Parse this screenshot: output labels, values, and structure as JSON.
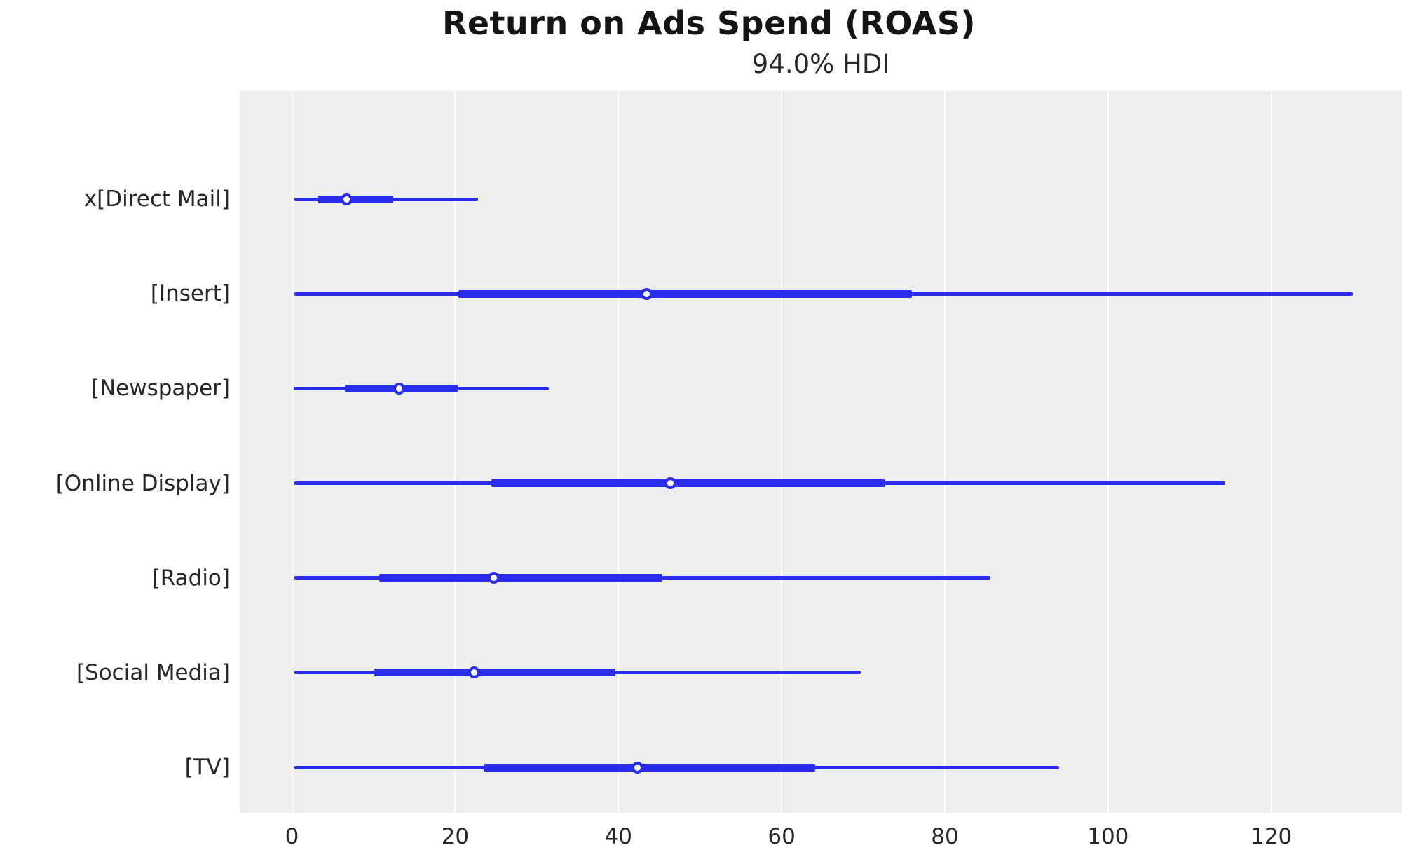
{
  "figure": {
    "title": "Return on Ads Spend (ROAS)",
    "subtitle": "94.0% HDI"
  },
  "chart_data": {
    "type": "forest",
    "title": "Return on Ads Spend (ROAS)",
    "subtitle": "94.0% HDI",
    "hdi_probability": "94.0%",
    "orientation": "horizontal",
    "grid": "vertical-white-on-gray",
    "legend": "none",
    "xlim": [
      -6.4,
      136.0
    ],
    "x_ticks": [
      0,
      20,
      40,
      60,
      80,
      100,
      120
    ],
    "x_tick_labels": [
      "0",
      "20",
      "40",
      "60",
      "80",
      "100",
      "120"
    ],
    "series": [
      {
        "label": "x[Direct Mail]",
        "hdi_low": 0.3,
        "hdi_high": 22.8,
        "iqr_low": 3.2,
        "iqr_high": 12.4,
        "point": 6.7
      },
      {
        "label": "[Insert]",
        "hdi_low": 0.3,
        "hdi_high": 130.0,
        "iqr_low": 20.4,
        "iqr_high": 76.0,
        "point": 43.5
      },
      {
        "label": "[Newspaper]",
        "hdi_low": 0.2,
        "hdi_high": 31.5,
        "iqr_low": 6.5,
        "iqr_high": 20.3,
        "point": 13.1
      },
      {
        "label": "[Online Display]",
        "hdi_low": 0.3,
        "hdi_high": 114.4,
        "iqr_low": 24.4,
        "iqr_high": 72.7,
        "point": 46.4
      },
      {
        "label": "[Radio]",
        "hdi_low": 0.3,
        "hdi_high": 85.6,
        "iqr_low": 10.7,
        "iqr_high": 45.4,
        "point": 24.7
      },
      {
        "label": "[Social Media]",
        "hdi_low": 0.3,
        "hdi_high": 69.7,
        "iqr_low": 10.1,
        "iqr_high": 39.6,
        "point": 22.3
      },
      {
        "label": "[TV]",
        "hdi_low": 0.3,
        "hdi_high": 94.0,
        "iqr_low": 23.5,
        "iqr_high": 64.1,
        "point": 42.3
      }
    ],
    "colors": {
      "line": "#2a2eec",
      "marker_face": "#ffffff",
      "plot_background": "#eeeeee",
      "gridline": "#ffffff",
      "text": "#262626",
      "title_text": "#141414"
    }
  }
}
